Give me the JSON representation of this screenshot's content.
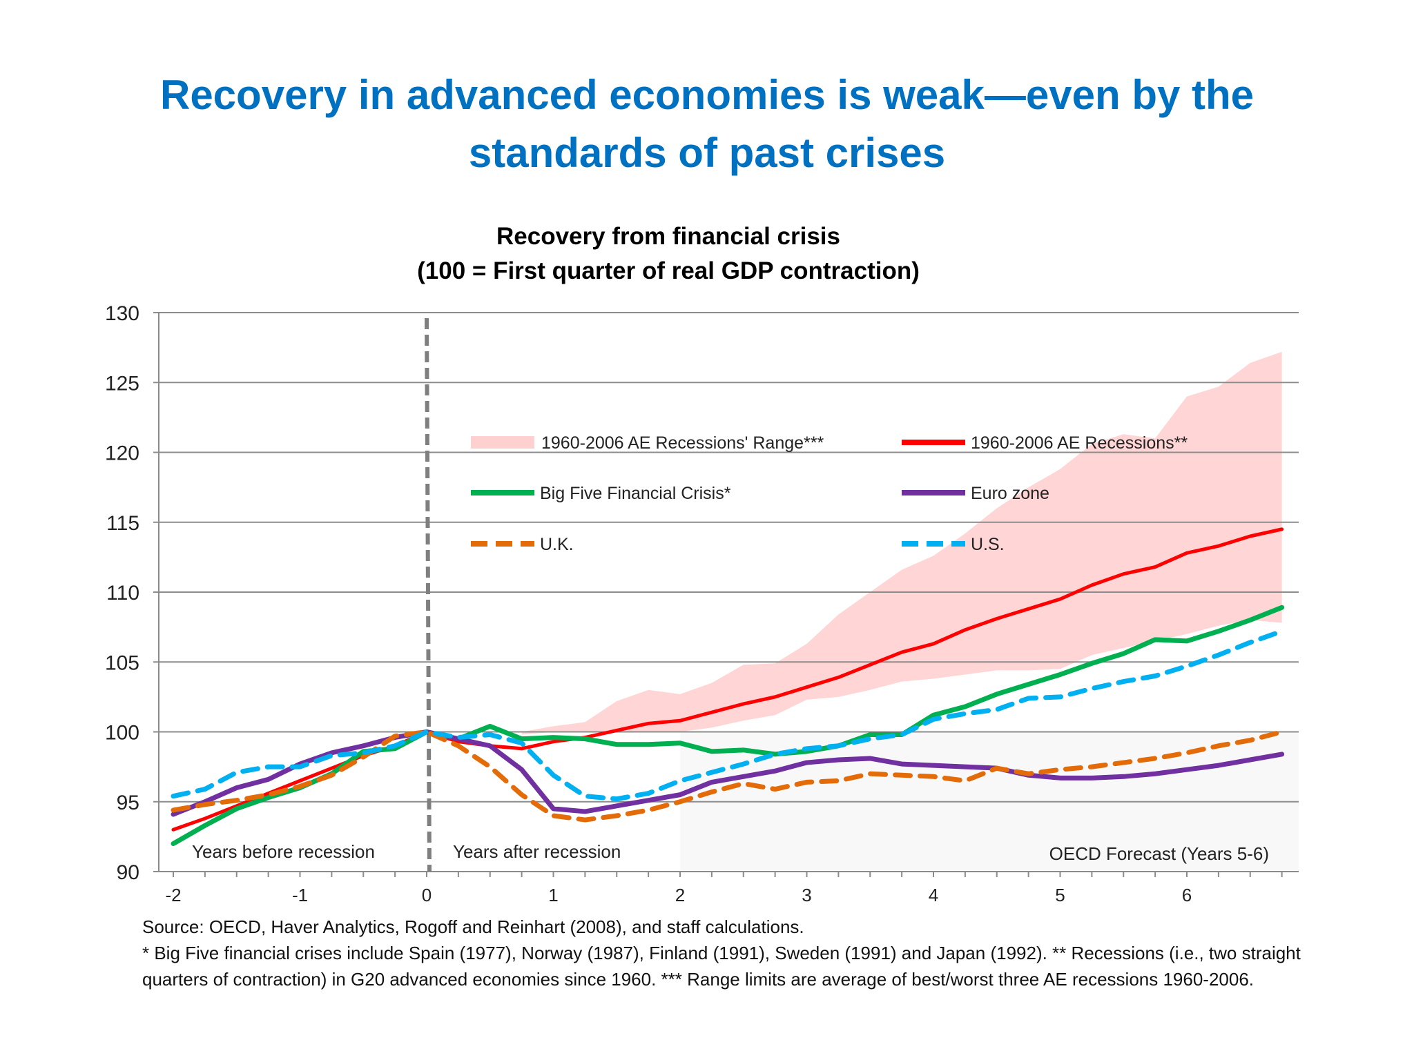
{
  "slide": {
    "title_line1": "Recovery in advanced economies is weak—even by the",
    "title_line2": "standards of past crises",
    "footnotes": [
      "Source: OECD, Haver Analytics, Rogoff and Reinhart (2008), and staff calculations.",
      "* Big Five financial crises include Spain (1977), Norway (1987), Finland (1991), Sweden (1991) and Japan (1992).  ** Recessions (i.e., two straight quarters of contraction) in G20 advanced economies since 1960.  *** Range limits are average of best/worst three AE recessions 1960-2006."
    ]
  },
  "chart_data": {
    "type": "line",
    "title": "Recovery from financial crisis",
    "subtitle": "(100 = First quarter of real GDP contraction)",
    "xlabel": "",
    "ylabel": "",
    "xlim": [
      -2,
      7
    ],
    "ylim": [
      90,
      130
    ],
    "x_ticks": [
      -2,
      -1,
      0,
      1,
      2,
      3,
      4,
      5,
      6
    ],
    "y_ticks": [
      90,
      95,
      100,
      105,
      110,
      115,
      120,
      125,
      130
    ],
    "grid": "horizontal",
    "legend": "upper-center, two columns",
    "vertical_marker": {
      "x": 0,
      "style": "dashed",
      "color": "#7f7f7f"
    },
    "annotations": [
      "Years before recession",
      "Years after recession",
      "OECD Forecast (Years 5-6)"
    ],
    "x": [
      -2,
      -1.75,
      -1.5,
      -1.25,
      -1,
      -0.75,
      -0.5,
      -0.25,
      0,
      0.25,
      0.5,
      0.75,
      1,
      1.25,
      1.5,
      1.75,
      2,
      2.25,
      2.5,
      2.75,
      3,
      3.25,
      3.5,
      3.75,
      4,
      4.25,
      4.5,
      4.75,
      5,
      5.25,
      5.5,
      5.75,
      6,
      6.25,
      6.5,
      6.75
    ],
    "band": {
      "name": "1960-2006 AE Recessions' Range***",
      "color": "#FFD0D0",
      "x": [
        0.75,
        1,
        1.25,
        1.5,
        1.75,
        2,
        2.25,
        2.5,
        2.75,
        3,
        3.25,
        3.5,
        3.75,
        4,
        4.25,
        4.5,
        4.75,
        5,
        5.25,
        5.5,
        5.75,
        6,
        6.25,
        6.5,
        6.75
      ],
      "upper": [
        100,
        100.4,
        100.7,
        102.2,
        103.0,
        102.7,
        103.5,
        104.8,
        104.9,
        106.3,
        108.4,
        110.0,
        111.6,
        112.6,
        114.2,
        116.0,
        117.5,
        118.8,
        120.6,
        121.3,
        121.0,
        124.0,
        124.7,
        126.4,
        127.2
      ],
      "lower": [
        99.8,
        100,
        100,
        100,
        100,
        100,
        100.3,
        100.8,
        101.2,
        102.3,
        102.5,
        103.0,
        103.6,
        103.8,
        104.1,
        104.4,
        104.4,
        104.5,
        105.5,
        106.0,
        106.5,
        107.0,
        107.6,
        108.0,
        107.8
      ]
    },
    "series": [
      {
        "name": "1960-2006 AE Recessions**",
        "color": "#FF0000",
        "style": "solid",
        "values": [
          93.0,
          93.8,
          94.7,
          95.6,
          96.5,
          97.4,
          98.3,
          99.0,
          100,
          99.3,
          99.0,
          98.8,
          99.3,
          99.6,
          100.1,
          100.6,
          100.8,
          101.4,
          102.0,
          102.5,
          103.2,
          103.9,
          104.8,
          105.7,
          106.3,
          107.3,
          108.1,
          108.8,
          109.5,
          110.5,
          111.3,
          111.8,
          112.8,
          113.3,
          114.0,
          114.5
        ]
      },
      {
        "name": "Big Five Financial Crisis*",
        "color": "#00B050",
        "style": "solid",
        "values": [
          92.0,
          93.3,
          94.5,
          95.3,
          96.0,
          97.0,
          98.6,
          98.8,
          100,
          99.5,
          100.4,
          99.5,
          99.6,
          99.5,
          99.1,
          99.1,
          99.2,
          98.6,
          98.7,
          98.4,
          98.6,
          99.0,
          99.8,
          99.8,
          101.2,
          101.8,
          102.7,
          103.4,
          104.1,
          104.9,
          105.6,
          106.6,
          106.5,
          107.2,
          108.0,
          108.9
        ]
      },
      {
        "name": "Euro zone",
        "color": "#7030A0",
        "style": "solid",
        "values": [
          94.1,
          95.0,
          96.0,
          96.6,
          97.7,
          98.5,
          99.0,
          99.6,
          100,
          99.5,
          99.0,
          97.3,
          94.5,
          94.3,
          94.7,
          95.1,
          95.5,
          96.4,
          96.8,
          97.2,
          97.8,
          98.0,
          98.1,
          97.7,
          97.6,
          97.5,
          97.4,
          96.9,
          96.7,
          96.7,
          96.8,
          97.0,
          97.3,
          97.6,
          98.0,
          98.4
        ]
      },
      {
        "name": "U.K.",
        "color": "#E36C09",
        "style": "dashed",
        "values": [
          94.4,
          94.8,
          95.1,
          95.5,
          96.1,
          96.9,
          98.2,
          99.7,
          100,
          99.0,
          97.5,
          95.5,
          94.0,
          93.7,
          94.0,
          94.4,
          95.0,
          95.7,
          96.3,
          95.9,
          96.4,
          96.5,
          97.0,
          96.9,
          96.8,
          96.5,
          97.4,
          97.0,
          97.3,
          97.5,
          97.8,
          98.1,
          98.5,
          99.0,
          99.4,
          100.0
        ]
      },
      {
        "name": "U.S.",
        "color": "#00B0F0",
        "style": "dashed",
        "values": [
          95.4,
          95.9,
          97.1,
          97.5,
          97.5,
          98.3,
          98.5,
          99.0,
          100,
          99.6,
          99.8,
          99.2,
          96.9,
          95.4,
          95.2,
          95.6,
          96.5,
          97.1,
          97.7,
          98.4,
          98.8,
          99.0,
          99.5,
          99.8,
          100.9,
          101.3,
          101.6,
          102.4,
          102.5,
          103.1,
          103.6,
          104.0,
          104.7,
          105.5,
          106.4,
          107.2
        ]
      }
    ]
  }
}
